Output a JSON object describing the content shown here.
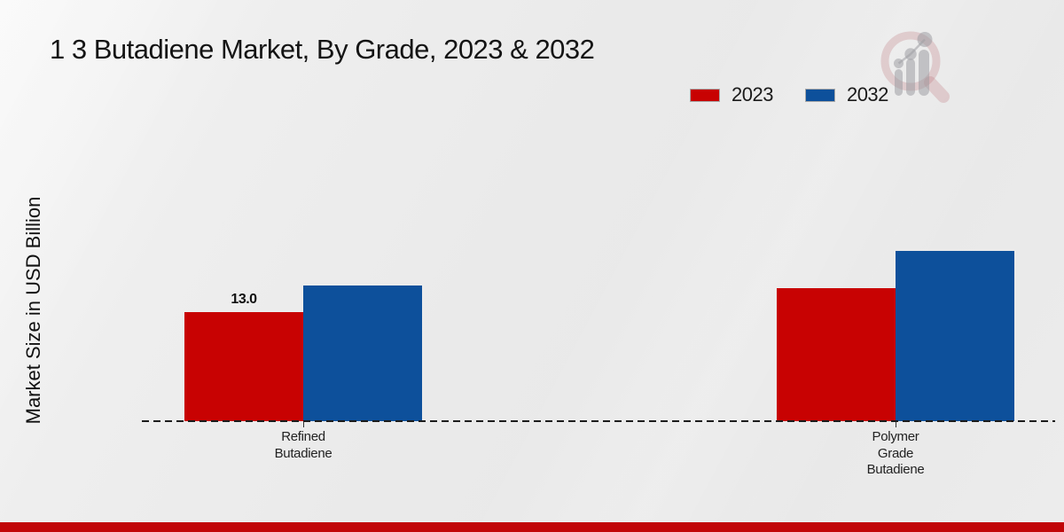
{
  "title": "1 3 Butadiene Market, By Grade, 2023 & 2032",
  "y_axis_label": "Market Size in USD Billion",
  "legend": {
    "items": [
      {
        "label": "2023",
        "color": "#c80202"
      },
      {
        "label": "2032",
        "color": "#0d509b"
      }
    ]
  },
  "footer": {
    "color": "#c10508"
  },
  "chart_data": {
    "type": "bar",
    "title": "1 3 Butadiene Market, By Grade, 2023 & 2032",
    "ylabel": "Market Size in USD Billion",
    "xlabel": "",
    "categories": [
      "Refined Butadiene",
      "Polymer Grade Butadiene"
    ],
    "categories_lines": [
      [
        "Refined",
        "Butadiene"
      ],
      [
        "Polymer",
        "Grade",
        "Butadiene"
      ]
    ],
    "series": [
      {
        "name": "2023",
        "color": "#c80202",
        "values": [
          13.0,
          15.9
        ]
      },
      {
        "name": "2032",
        "color": "#0d509b",
        "values": [
          16.2,
          20.3
        ]
      }
    ],
    "data_labels": [
      {
        "series_index": 0,
        "category_index": 0,
        "text": "13.0"
      }
    ],
    "ylim": [
      0,
      21
    ],
    "grid": false,
    "baseline_style": "dashed",
    "legend_position": "top-right"
  }
}
